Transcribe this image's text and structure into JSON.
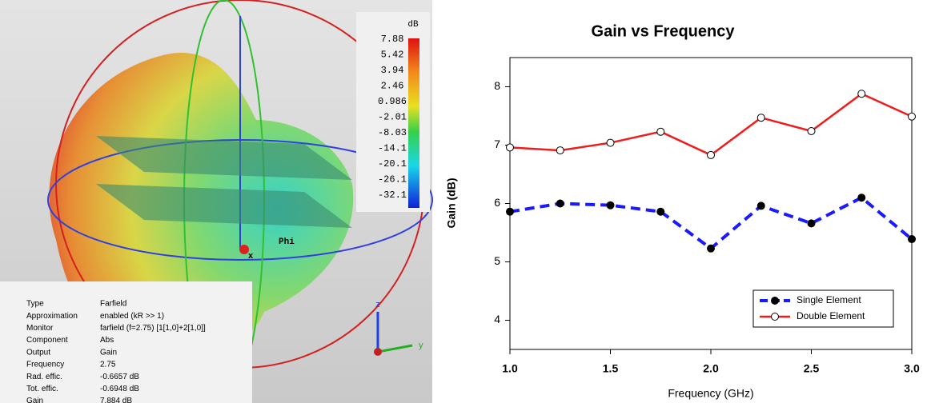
{
  "farfield": {
    "colorbar": {
      "unit": "dB",
      "labels": [
        "7.88",
        "5.42",
        "3.94",
        "2.46",
        "0.986",
        "-2.01",
        "-8.03",
        "-14.1",
        "-20.1",
        "-26.1",
        "-32.1"
      ]
    },
    "axis_labels": {
      "phi": "Phi",
      "x": "x",
      "z": "z",
      "y": "y"
    },
    "info": [
      [
        "Type",
        "Farfield"
      ],
      [
        "Approximation",
        "enabled (kR >> 1)"
      ],
      [
        "Monitor",
        "farfield (f=2.75) [1[1,0]+2[1,0]]"
      ],
      [
        "Component",
        "Abs"
      ],
      [
        "Output",
        "Gain"
      ],
      [
        "Frequency",
        "2.75"
      ],
      [
        "Rad. effic.",
        "-0.6657 dB"
      ],
      [
        "Tot. effic.",
        "-0.6948 dB"
      ],
      [
        "Gain",
        "7.884 dB"
      ]
    ]
  },
  "chart_data": {
    "type": "line",
    "title": "Gain vs Frequency",
    "x_label": "Frequency (GHz)",
    "y_label": "Gain (dB)",
    "x": [
      1.0,
      1.25,
      1.5,
      1.75,
      2.0,
      2.25,
      2.5,
      2.75,
      3.0
    ],
    "series": [
      {
        "name": "Single Element",
        "color": "#1a1aff",
        "line_style": "dashed",
        "marker_color": "#000000",
        "values": [
          5.86,
          6.0,
          5.97,
          5.86,
          5.23,
          5.96,
          5.66,
          6.1,
          5.39
        ]
      },
      {
        "name": "Double Element",
        "color": "#ee1c1c",
        "line_style": "solid",
        "marker_color": "#ffffff",
        "values": [
          6.96,
          6.91,
          7.04,
          7.23,
          6.83,
          7.47,
          7.24,
          7.88,
          7.49
        ]
      }
    ],
    "xlim": [
      1.0,
      3.0
    ],
    "ylim": [
      3.5,
      8.5
    ],
    "xticks": [
      {
        "value": 1.0,
        "label": "1.0"
      },
      {
        "value": 1.5,
        "label": "1.5"
      },
      {
        "value": 2.0,
        "label": "2.0"
      },
      {
        "value": 2.5,
        "label": "2.5"
      },
      {
        "value": 3.0,
        "label": "3.0"
      }
    ],
    "yticks": [
      4,
      5,
      6,
      7,
      8
    ],
    "legend": "lower right"
  }
}
